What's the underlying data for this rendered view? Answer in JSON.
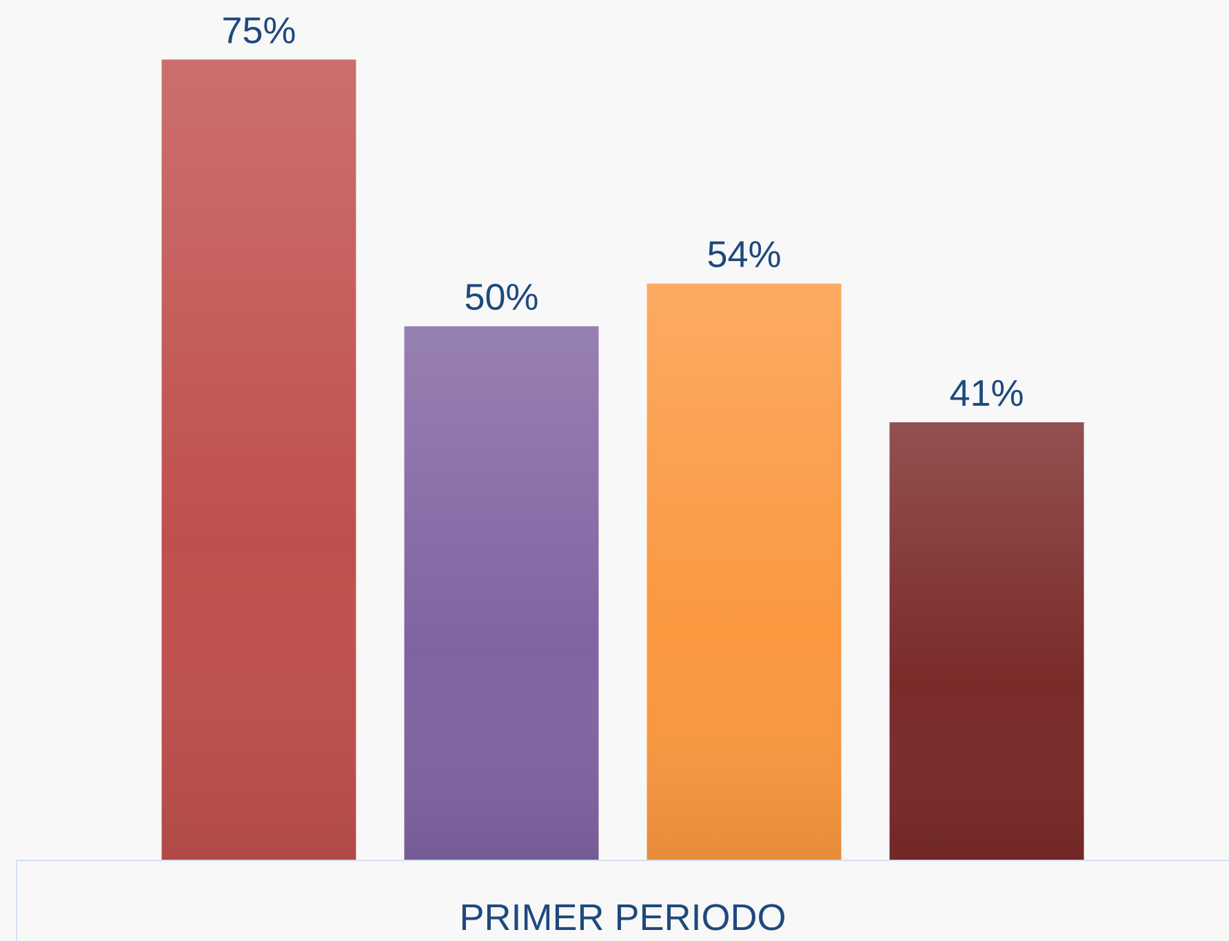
{
  "chart_data": {
    "type": "bar",
    "categories": [
      "PRIMER PERIODO"
    ],
    "series": [
      {
        "color": "#c0504d",
        "values": [
          75
        ],
        "value_labels": [
          "75%"
        ]
      },
      {
        "color": "#8064a2",
        "values": [
          50
        ],
        "value_labels": [
          "50%"
        ]
      },
      {
        "color": "#fb9840",
        "values": [
          54
        ],
        "value_labels": [
          "54%"
        ]
      },
      {
        "color": "#7b2a2a",
        "values": [
          41
        ],
        "value_labels": [
          "41%"
        ]
      }
    ],
    "ylim": [
      0,
      80
    ]
  }
}
